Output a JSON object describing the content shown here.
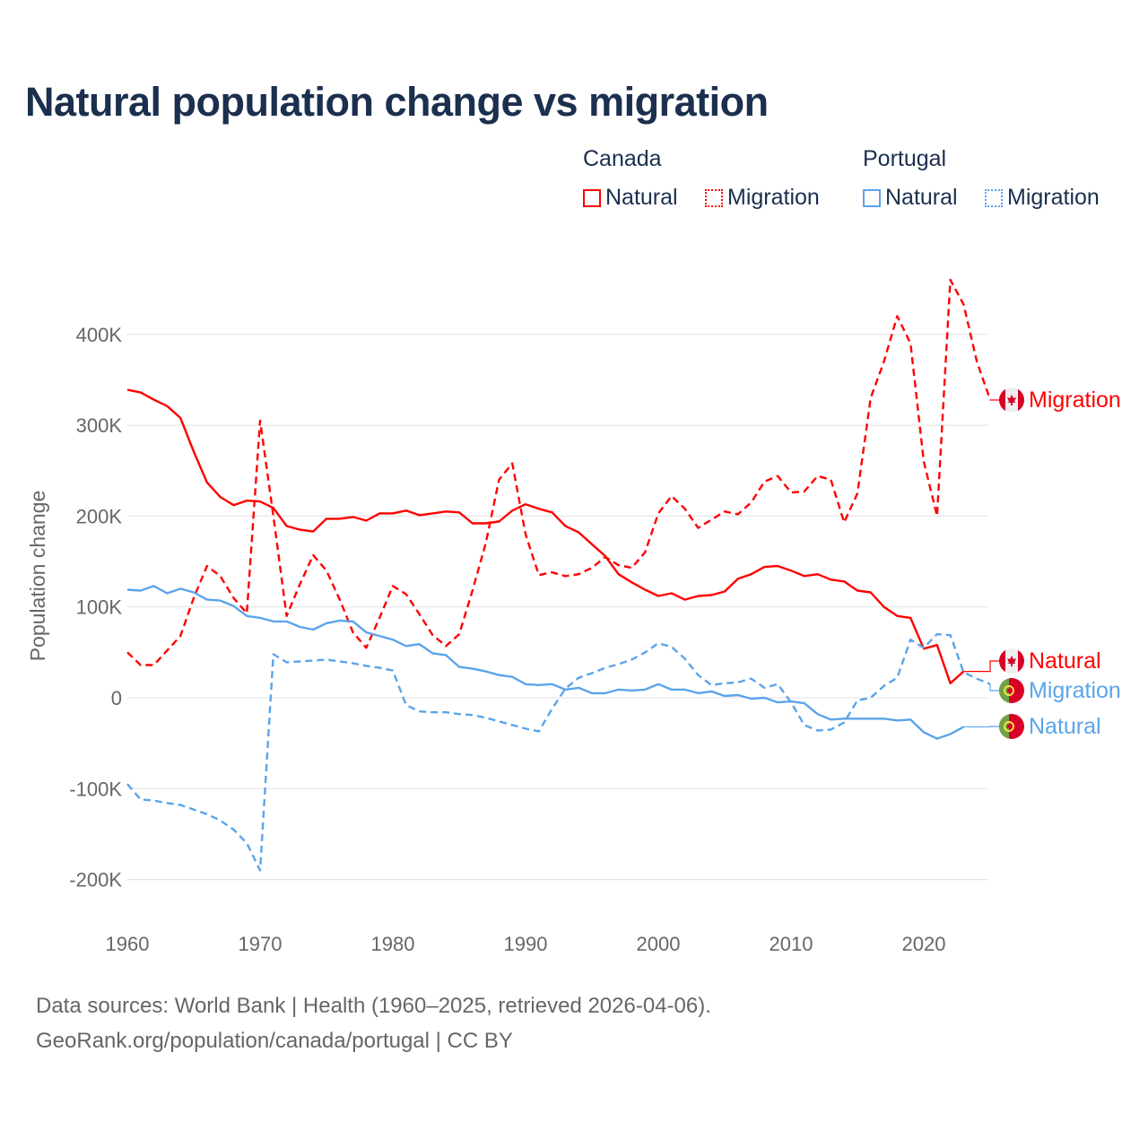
{
  "title": "Natural population change vs migration",
  "legend": {
    "groups": [
      {
        "name": "Canada",
        "items": [
          "Natural",
          "Migration"
        ],
        "color": "#ff0000"
      },
      {
        "name": "Portugal",
        "items": [
          "Natural",
          "Migration"
        ],
        "color": "#5ba4ea"
      }
    ]
  },
  "footer": {
    "line1": "Data sources: World Bank | Health (1960–2025, retrieved 2026-04-06).",
    "line2": "GeoRank.org/population/canada/portugal | CC BY"
  },
  "chart_data": {
    "type": "line",
    "title": "Natural population change vs migration",
    "xlabel": "",
    "ylabel": "Population change",
    "xlim": [
      1960,
      2025
    ],
    "ylim": [
      -200000,
      460000
    ],
    "x_ticks": [
      "1960",
      "1970",
      "1980",
      "1990",
      "2000",
      "2010",
      "2020"
    ],
    "y_ticks": [
      {
        "v": 400000,
        "label": "400K"
      },
      {
        "v": 300000,
        "label": "300K"
      },
      {
        "v": 200000,
        "label": "200K"
      },
      {
        "v": 100000,
        "label": "100K"
      },
      {
        "v": 0,
        "label": "0"
      },
      {
        "v": -100000,
        "label": "-100K"
      },
      {
        "v": -200000,
        "label": "-200K"
      }
    ],
    "grid": true,
    "series": [
      {
        "name": "Canada Migration",
        "label": "Migration",
        "country": "canada",
        "color": "#ff0000",
        "dashed": true,
        "start": 1960,
        "values": [
          50,
          36,
          36,
          52,
          68,
          110,
          145,
          134,
          110,
          93,
          305,
          200,
          90,
          125,
          157,
          140,
          108,
          72,
          55,
          88,
          123,
          114,
          92,
          69,
          57,
          70,
          118,
          170,
          240,
          258,
          180,
          135,
          138,
          134,
          136,
          143,
          155,
          146,
          143,
          160,
          203,
          222,
          208,
          187,
          196,
          205,
          202,
          215,
          238,
          244,
          226,
          227,
          244,
          240,
          193,
          225,
          330,
          370,
          420,
          390,
          260,
          200,
          460,
          433,
          370,
          328
        ]
      },
      {
        "name": "Canada Natural",
        "label": "Natural",
        "country": "canada",
        "color": "#ff0000",
        "dashed": false,
        "start": 1960,
        "values": [
          339,
          336,
          328,
          321,
          308,
          271,
          237,
          221,
          212,
          217,
          216,
          209,
          189,
          185,
          183,
          197,
          197,
          199,
          195,
          203,
          203,
          206,
          201,
          203,
          205,
          204,
          192,
          192,
          194,
          206,
          213,
          208,
          204,
          189,
          182,
          169,
          156,
          136,
          127,
          119,
          112,
          115,
          108,
          112,
          113,
          117,
          131,
          136,
          144,
          145,
          140,
          134,
          136,
          130,
          128,
          118,
          116,
          100,
          90,
          88,
          54,
          58,
          16,
          29
        ]
      },
      {
        "name": "Portugal Migration",
        "label": "Migration",
        "country": "portugal",
        "color": "#5ba4ea",
        "dashed": true,
        "start": 1960,
        "values": [
          -95,
          -112,
          -113,
          -116,
          -118,
          -123,
          -128,
          -135,
          -145,
          -160,
          -190,
          48,
          39,
          40,
          41,
          42,
          40,
          38,
          35,
          33,
          30,
          -8,
          -15,
          -16,
          -16,
          -18,
          -19,
          -22,
          -26,
          -30,
          -34,
          -37,
          -12,
          10,
          22,
          27,
          33,
          37,
          42,
          50,
          60,
          56,
          43,
          25,
          14,
          16,
          17,
          21,
          11,
          15,
          -5,
          -30,
          -36,
          -35,
          -27,
          -3,
          0,
          13,
          22,
          64,
          55,
          70,
          69,
          28,
          21,
          15
        ]
      },
      {
        "name": "Portugal Natural",
        "label": "Natural",
        "country": "portugal",
        "color": "#5ba4ea",
        "dashed": false,
        "start": 1960,
        "values": [
          119,
          118,
          123,
          115,
          120,
          116,
          108,
          107,
          101,
          90,
          88,
          84,
          84,
          78,
          75,
          82,
          85,
          84,
          72,
          68,
          64,
          57,
          59,
          49,
          47,
          34,
          32,
          29,
          25,
          23,
          15,
          14,
          15,
          9,
          11,
          5,
          5,
          9,
          8,
          9,
          15,
          9,
          9,
          5,
          7,
          2,
          3,
          -1,
          0,
          -5,
          -4,
          -6,
          -18,
          -24,
          -23,
          -23,
          -23,
          -23,
          -25,
          -24,
          -38,
          -45,
          -40,
          -32
        ]
      }
    ],
    "value_unit": "thousands"
  }
}
